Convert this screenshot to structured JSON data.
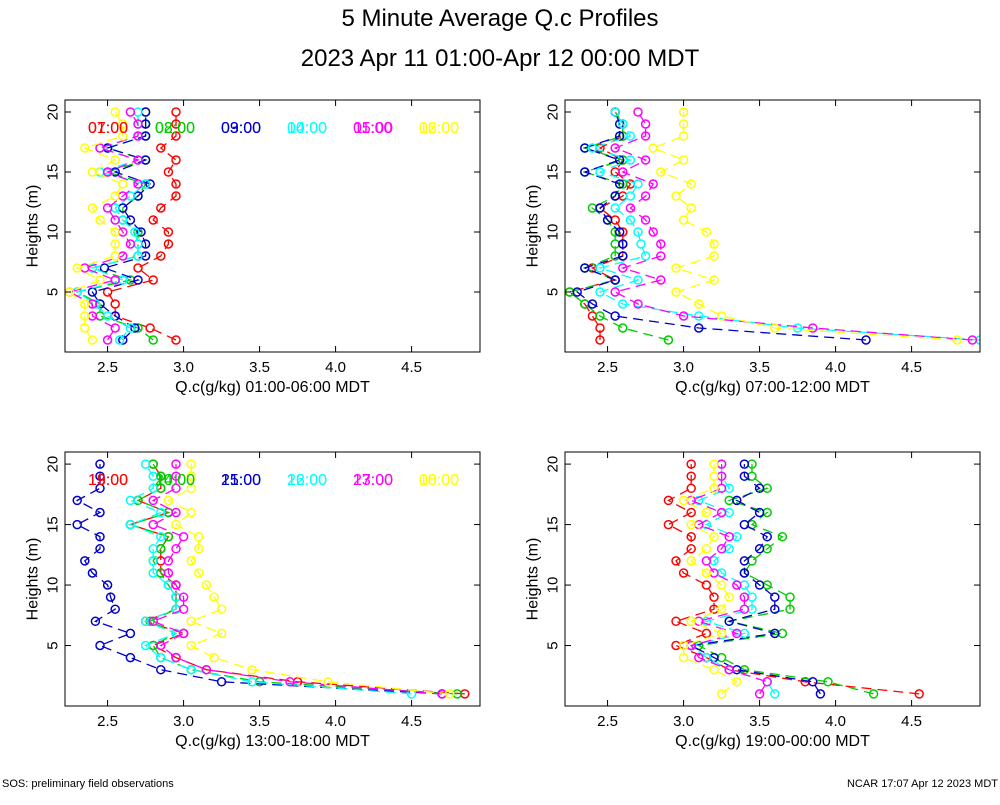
{
  "title": "5 Minute Average Q.c Profiles",
  "subtitle": "2023 Apr 11 01:00-Apr 12 00:00 MDT",
  "footer_left": "SOS: preliminary field observations",
  "footer_right": "NCAR 17:07 Apr 12 2023 MDT",
  "colors": {
    "red": "#ff0000",
    "green": "#00cc00",
    "blue": "#0000cc",
    "cyan": "#00ffff",
    "magenta": "#ff00ff",
    "yellow": "#ffff00"
  },
  "chart_data": [
    {
      "type": "line",
      "title": "01:00-06:00",
      "xlabel": "Q.c(g/kg) 01:00-06:00 MDT",
      "ylabel": "Heights (m)",
      "xlim": [
        2.22,
        4.95
      ],
      "ylim": [
        0,
        21
      ],
      "xticks": [
        "2.5",
        "3.0",
        "3.5",
        "4.0",
        "4.5"
      ],
      "yticks": [
        "5",
        "10",
        "15",
        "20"
      ],
      "heights": [
        1,
        2,
        3,
        4,
        5,
        6,
        7,
        8,
        9,
        10,
        11,
        12,
        13,
        14,
        15,
        16,
        17,
        18,
        19,
        20
      ],
      "series": [
        {
          "name": "01:00",
          "color": "red",
          "values": [
            2.95,
            2.78,
            2.55,
            2.55,
            2.5,
            2.8,
            2.7,
            2.85,
            2.9,
            2.9,
            2.8,
            2.85,
            2.95,
            2.95,
            2.9,
            2.95,
            2.85,
            2.95,
            2.95,
            2.95
          ]
        },
        {
          "name": "02:00",
          "color": "green",
          "values": [
            2.8,
            2.7,
            2.45,
            2.45,
            2.3,
            2.65,
            2.4,
            2.7,
            2.7,
            2.7,
            2.6,
            2.6,
            2.7,
            2.75,
            2.5,
            2.75,
            2.5,
            2.75,
            2.75,
            2.75
          ]
        },
        {
          "name": "03:00",
          "color": "blue",
          "values": [
            2.6,
            2.68,
            2.55,
            2.45,
            2.4,
            2.7,
            2.48,
            2.75,
            2.75,
            2.72,
            2.65,
            2.6,
            2.7,
            2.78,
            2.55,
            2.75,
            2.5,
            2.75,
            2.75,
            2.75
          ]
        },
        {
          "name": "04:00",
          "color": "cyan",
          "values": [
            2.58,
            2.65,
            2.5,
            2.42,
            2.3,
            2.6,
            2.4,
            2.7,
            2.7,
            2.68,
            2.6,
            2.55,
            2.65,
            2.75,
            2.45,
            2.7,
            2.45,
            2.7,
            2.7,
            2.7
          ]
        },
        {
          "name": "05:00",
          "color": "magenta",
          "values": [
            2.5,
            2.55,
            2.4,
            2.4,
            2.25,
            2.55,
            2.35,
            2.6,
            2.65,
            2.6,
            2.55,
            2.5,
            2.6,
            2.7,
            2.5,
            2.7,
            2.45,
            2.7,
            2.7,
            2.65
          ]
        },
        {
          "name": "06:00",
          "color": "yellow",
          "values": [
            2.4,
            2.35,
            2.35,
            2.35,
            2.25,
            2.45,
            2.3,
            2.55,
            2.55,
            2.55,
            2.45,
            2.4,
            2.55,
            2.6,
            2.4,
            2.55,
            2.35,
            2.6,
            2.6,
            2.55
          ]
        }
      ]
    },
    {
      "type": "line",
      "title": "07:00-12:00",
      "xlabel": "Q.c(g/kg) 07:00-12:00 MDT",
      "ylabel": "Heights (m)",
      "xlim": [
        2.22,
        4.95
      ],
      "ylim": [
        0,
        21
      ],
      "xticks": [
        "2.5",
        "3.0",
        "3.5",
        "4.0",
        "4.5"
      ],
      "yticks": [
        "5",
        "10",
        "15",
        "20"
      ],
      "heights": [
        1,
        2,
        3,
        4,
        5,
        6,
        7,
        8,
        9,
        10,
        11,
        12,
        13,
        14,
        15,
        16,
        17,
        18,
        19,
        20
      ],
      "series": [
        {
          "name": "07:00",
          "color": "red",
          "values": [
            2.45,
            2.45,
            2.4,
            2.35,
            2.25,
            2.55,
            2.4,
            2.6,
            2.6,
            2.6,
            2.55,
            2.45,
            2.6,
            2.65,
            2.55,
            2.6,
            2.45,
            2.6,
            2.6,
            2.55
          ]
        },
        {
          "name": "08:00",
          "color": "green",
          "values": [
            2.9,
            2.6,
            2.45,
            2.35,
            2.25,
            2.55,
            2.35,
            2.55,
            2.55,
            2.55,
            2.5,
            2.4,
            2.55,
            2.6,
            2.35,
            2.6,
            2.35,
            2.6,
            2.6,
            2.55
          ]
        },
        {
          "name": "09:00",
          "color": "blue",
          "values": [
            4.2,
            3.1,
            2.55,
            2.4,
            2.3,
            2.55,
            2.35,
            2.6,
            2.6,
            2.58,
            2.5,
            2.45,
            2.55,
            2.58,
            2.35,
            2.58,
            2.35,
            2.58,
            2.58,
            2.55
          ]
        },
        {
          "name": "10:00",
          "color": "cyan",
          "values": [
            4.95,
            3.75,
            3.1,
            2.6,
            2.45,
            2.7,
            2.45,
            2.75,
            2.72,
            2.7,
            2.65,
            2.55,
            2.65,
            2.7,
            2.45,
            2.65,
            2.4,
            2.65,
            2.6,
            2.55
          ]
        },
        {
          "name": "11:00",
          "color": "magenta",
          "values": [
            4.9,
            3.85,
            3.0,
            2.7,
            2.55,
            2.85,
            2.6,
            2.85,
            2.85,
            2.8,
            2.75,
            2.65,
            2.75,
            2.8,
            2.6,
            2.75,
            2.55,
            2.75,
            2.75,
            2.7
          ]
        },
        {
          "name": "12:00",
          "color": "yellow",
          "values": [
            4.8,
            3.6,
            3.25,
            3.1,
            2.95,
            3.2,
            2.95,
            3.2,
            3.2,
            3.15,
            3.0,
            3.05,
            2.95,
            3.05,
            2.85,
            3.0,
            2.8,
            3.0,
            3.0,
            3.0
          ]
        }
      ]
    },
    {
      "type": "line",
      "title": "13:00-18:00",
      "xlabel": "Q.c(g/kg) 13:00-18:00 MDT",
      "ylabel": "Heights (m)",
      "xlim": [
        2.22,
        4.95
      ],
      "ylim": [
        0,
        21
      ],
      "xticks": [
        "2.5",
        "3.0",
        "3.5",
        "4.0",
        "4.5"
      ],
      "yticks": [
        "5",
        "10",
        "15",
        "20"
      ],
      "heights": [
        1,
        2,
        3,
        4,
        5,
        6,
        7,
        8,
        9,
        10,
        11,
        12,
        13,
        14,
        15,
        16,
        17,
        18,
        19,
        20
      ],
      "series": [
        {
          "name": "13:00",
          "color": "red",
          "values": [
            4.85,
            3.75,
            3.15,
            2.95,
            2.8,
            3.0,
            2.75,
            2.95,
            2.95,
            2.95,
            2.85,
            2.85,
            2.85,
            2.9,
            2.65,
            2.9,
            2.7,
            2.85,
            2.85,
            2.8
          ]
        },
        {
          "name": "14:00",
          "color": "green",
          "values": [
            4.8,
            3.5,
            3.05,
            2.85,
            2.8,
            2.95,
            2.78,
            2.95,
            2.95,
            2.9,
            2.85,
            2.8,
            2.85,
            2.9,
            2.65,
            2.9,
            2.7,
            2.85,
            2.85,
            2.8
          ]
        },
        {
          "name": "15:00",
          "color": "blue",
          "values": [
            4.7,
            3.25,
            2.85,
            2.65,
            2.45,
            2.65,
            2.42,
            2.55,
            2.52,
            2.5,
            2.4,
            2.35,
            2.45,
            2.45,
            2.3,
            2.45,
            2.3,
            2.45,
            2.45,
            2.45
          ]
        },
        {
          "name": "16:00",
          "color": "cyan",
          "values": [
            4.5,
            3.45,
            3.05,
            2.85,
            2.75,
            2.95,
            2.75,
            2.95,
            2.95,
            2.9,
            2.8,
            2.8,
            2.8,
            2.85,
            2.65,
            2.85,
            2.65,
            2.8,
            2.8,
            2.75
          ]
        },
        {
          "name": "17:00",
          "color": "magenta",
          "values": [
            4.7,
            3.7,
            3.15,
            2.95,
            2.85,
            3.0,
            2.8,
            3.0,
            3.0,
            2.95,
            2.9,
            2.9,
            2.95,
            3.0,
            2.8,
            2.95,
            2.8,
            2.95,
            2.95,
            2.95
          ]
        },
        {
          "name": "18:00",
          "color": "yellow",
          "values": [
            4.75,
            3.95,
            3.45,
            3.2,
            3.05,
            3.25,
            3.05,
            3.25,
            3.2,
            3.15,
            3.1,
            3.05,
            3.1,
            3.1,
            2.95,
            3.05,
            2.9,
            3.05,
            3.05,
            3.05
          ]
        }
      ]
    },
    {
      "type": "line",
      "title": "19:00-00:00",
      "xlabel": "Q.c(g/kg) 19:00-00:00 MDT",
      "ylabel": "Heights (m)",
      "xlim": [
        2.22,
        4.95
      ],
      "ylim": [
        0,
        21
      ],
      "xticks": [
        "2.5",
        "3.0",
        "3.5",
        "4.0",
        "4.5"
      ],
      "yticks": [
        "5",
        "10",
        "15",
        "20"
      ],
      "heights": [
        1,
        2,
        3,
        4,
        5,
        6,
        7,
        8,
        9,
        10,
        11,
        12,
        13,
        14,
        15,
        16,
        17,
        18,
        19,
        20
      ],
      "series": [
        {
          "name": "19:00",
          "color": "red",
          "values": [
            4.55,
            3.8,
            3.3,
            3.15,
            2.95,
            3.15,
            2.95,
            3.2,
            3.2,
            3.15,
            3.0,
            2.95,
            3.05,
            3.05,
            2.9,
            3.05,
            2.9,
            3.05,
            3.05,
            3.05
          ]
        },
        {
          "name": "20:00",
          "color": "green",
          "values": [
            4.25,
            3.95,
            3.4,
            3.25,
            3.1,
            3.65,
            3.3,
            3.7,
            3.7,
            3.55,
            3.4,
            3.45,
            3.55,
            3.65,
            3.45,
            3.55,
            3.3,
            3.55,
            3.45,
            3.45
          ]
        },
        {
          "name": "21:00",
          "color": "blue",
          "values": [
            3.9,
            3.85,
            3.35,
            3.2,
            3.05,
            3.6,
            3.3,
            3.6,
            3.6,
            3.5,
            3.4,
            3.4,
            3.5,
            3.55,
            3.4,
            3.5,
            3.35,
            3.5,
            3.4,
            3.4
          ]
        },
        {
          "name": "22:00",
          "color": "cyan",
          "values": [
            3.6,
            3.55,
            3.3,
            3.15,
            3.05,
            3.4,
            3.15,
            3.45,
            3.45,
            3.4,
            3.25,
            3.2,
            3.3,
            3.35,
            3.15,
            3.3,
            3.1,
            3.3,
            3.25,
            3.25
          ]
        },
        {
          "name": "23:00",
          "color": "magenta",
          "values": [
            3.5,
            3.55,
            3.3,
            3.1,
            3.05,
            3.35,
            3.1,
            3.4,
            3.4,
            3.35,
            3.2,
            3.15,
            3.25,
            3.3,
            3.1,
            3.25,
            3.05,
            3.25,
            3.25,
            3.25
          ]
        },
        {
          "name": "00:00",
          "color": "yellow",
          "values": [
            3.25,
            3.35,
            3.2,
            3.0,
            3.0,
            3.25,
            3.05,
            3.25,
            3.3,
            3.25,
            3.15,
            3.05,
            3.15,
            3.2,
            3.05,
            3.15,
            3.0,
            3.2,
            3.2,
            3.2
          ]
        }
      ]
    }
  ]
}
